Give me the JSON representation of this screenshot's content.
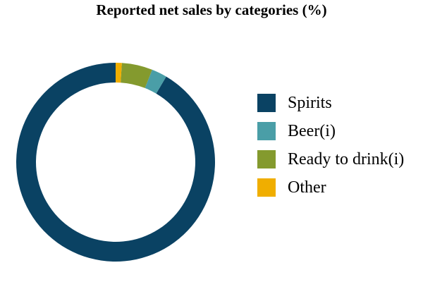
{
  "chart_data": {
    "type": "pie",
    "title": "Reported net sales by categories (%)",
    "categories": [
      "Spirits",
      "Beer(i)",
      "Ready to drink(i)",
      "Other"
    ],
    "values": [
      91.5,
      2.5,
      5.0,
      1.0
    ],
    "colors": [
      "#0a4263",
      "#4a9ea7",
      "#849a2e",
      "#f0ae00"
    ],
    "donut": true,
    "legend_position": "right"
  }
}
